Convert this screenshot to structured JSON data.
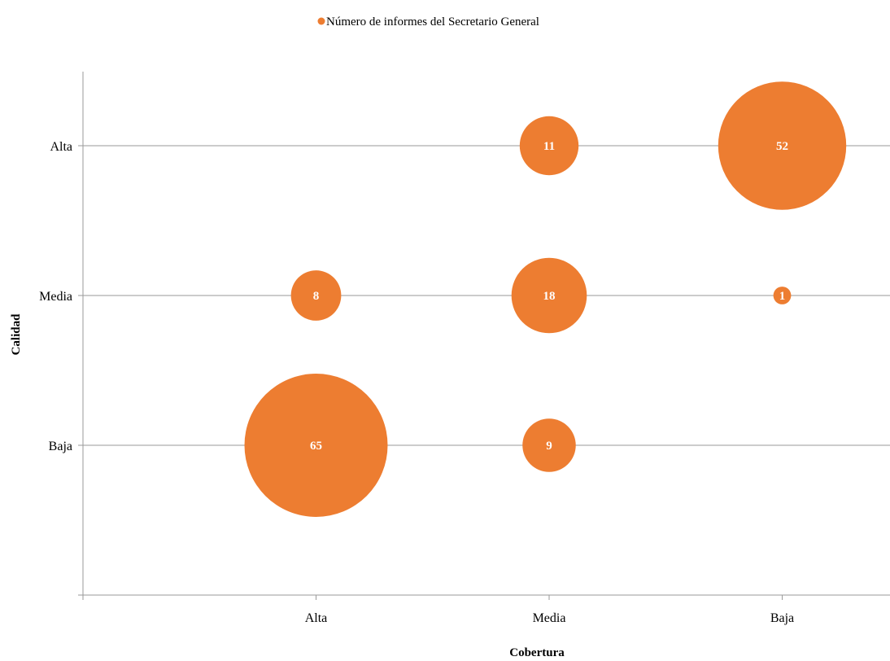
{
  "chart_data": {
    "type": "scatter",
    "subtype": "bubble",
    "title": "",
    "legend": {
      "position": "top",
      "entries": [
        "Número de informes del Secretario General"
      ]
    },
    "xlabel": "Cobertura",
    "ylabel": "Calidad",
    "x_categories": [
      "Alta",
      "Media",
      "Baja"
    ],
    "y_categories": [
      "Baja",
      "Media",
      "Alta"
    ],
    "grid": {
      "horizontal": true,
      "vertical": false
    },
    "series": [
      {
        "name": "Número de informes del Secretario General",
        "color": "#ED7D31",
        "points": [
          {
            "x": "Media",
            "y": "Alta",
            "value": 11,
            "label": "11"
          },
          {
            "x": "Baja",
            "y": "Alta",
            "value": 52,
            "label": "52"
          },
          {
            "x": "Alta",
            "y": "Media",
            "value": 8,
            "label": "8"
          },
          {
            "x": "Media",
            "y": "Media",
            "value": 18,
            "label": "18"
          },
          {
            "x": "Baja",
            "y": "Media",
            "value": 1,
            "label": "1"
          },
          {
            "x": "Alta",
            "y": "Baja",
            "value": 65,
            "label": "65"
          },
          {
            "x": "Media",
            "y": "Baja",
            "value": 9,
            "label": "9"
          }
        ]
      }
    ]
  }
}
